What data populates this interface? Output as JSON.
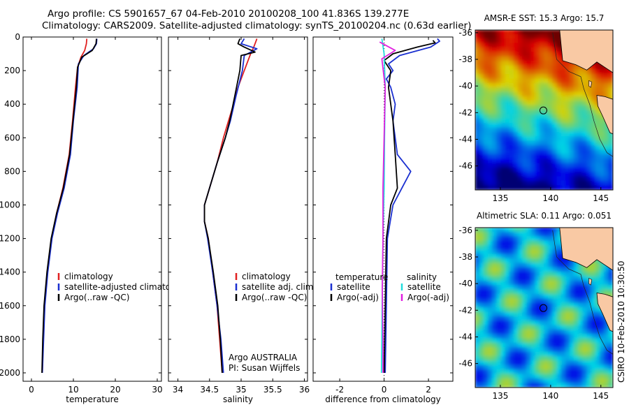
{
  "header": {
    "title_line1": "Argo profile: CS 5901657_67 04-Feb-2010 20100208_100 41.836S 139.277E",
    "title_line2": "Climatology: CARS2009. Satellite-adjusted climatology: synTS_20100204.nc (0.63d earlier)"
  },
  "side_stamp": "CSIRO 10-Feb-2010 10:30:50",
  "colors": {
    "climatology": "#e02020",
    "satellite": "#1a2fd0",
    "argo": "#000000",
    "temp_diff_sat": "#1a2fd0",
    "sal_diff_sat": "#22dddd",
    "sal_diff_argo": "#e020e0",
    "land": "#f9c9a4"
  },
  "chart_data": [
    {
      "id": "temperature",
      "type": "line",
      "xlabel": "temperature",
      "xlim": [
        -2,
        31
      ],
      "xticks": [
        0,
        10,
        20,
        30
      ],
      "ylim": [
        2050,
        0
      ],
      "yticks": [
        0,
        200,
        400,
        600,
        800,
        1000,
        1200,
        1400,
        1600,
        1800,
        2000
      ],
      "legend": [
        "climatology",
        "satellite-adjusted climatology",
        "Argo(..raw -QC)"
      ],
      "series": [
        {
          "name": "climatology",
          "color_key": "climatology",
          "points": [
            [
              13.2,
              10
            ],
            [
              13.1,
              40
            ],
            [
              12.7,
              80
            ],
            [
              11.8,
              120
            ],
            [
              11.0,
              180
            ],
            [
              10.5,
              300
            ],
            [
              9.8,
              500
            ],
            [
              9.0,
              700
            ],
            [
              7.5,
              900
            ],
            [
              6.0,
              1050
            ],
            [
              4.8,
              1200
            ],
            [
              3.8,
              1400
            ],
            [
              3.1,
              1600
            ],
            [
              2.8,
              1800
            ],
            [
              2.6,
              2000
            ]
          ]
        },
        {
          "name": "satellite-adjusted climatology",
          "color_key": "satellite",
          "points": [
            [
              15.6,
              10
            ],
            [
              15.5,
              40
            ],
            [
              14.8,
              70
            ],
            [
              12.5,
              110
            ],
            [
              11.2,
              160
            ],
            [
              10.9,
              300
            ],
            [
              10.0,
              500
            ],
            [
              9.3,
              700
            ],
            [
              7.8,
              900
            ],
            [
              6.2,
              1050
            ],
            [
              4.9,
              1200
            ],
            [
              3.9,
              1400
            ],
            [
              3.2,
              1600
            ],
            [
              2.9,
              1800
            ],
            [
              2.6,
              2000
            ]
          ]
        },
        {
          "name": "Argo(..raw -QC)",
          "color_key": "argo",
          "points": [
            [
              15.5,
              10
            ],
            [
              15.4,
              40
            ],
            [
              14.5,
              80
            ],
            [
              12.0,
              120
            ],
            [
              11.0,
              180
            ],
            [
              10.7,
              300
            ],
            [
              9.9,
              500
            ],
            [
              9.1,
              700
            ],
            [
              7.6,
              900
            ],
            [
              6.0,
              1050
            ],
            [
              4.7,
              1200
            ],
            [
              3.7,
              1400
            ],
            [
              3.0,
              1600
            ],
            [
              2.7,
              1800
            ],
            [
              2.5,
              2000
            ]
          ]
        }
      ]
    },
    {
      "id": "salinity",
      "type": "line",
      "xlabel": "salinity",
      "xlim": [
        33.85,
        36.05
      ],
      "xticks": [
        34,
        34.5,
        35,
        35.5,
        36
      ],
      "ylim": [
        2050,
        0
      ],
      "legend": [
        "climatology",
        "satellite adj. clim.",
        "Argo(..raw -QC)"
      ],
      "annotation": [
        "Argo AUSTRALIA",
        "PI: Susan Wijffels"
      ],
      "series": [
        {
          "name": "climatology",
          "color_key": "climatology",
          "points": [
            [
              35.25,
              10
            ],
            [
              35.2,
              60
            ],
            [
              35.15,
              100
            ],
            [
              35.05,
              200
            ],
            [
              34.95,
              300
            ],
            [
              34.88,
              400
            ],
            [
              34.8,
              500
            ],
            [
              34.72,
              600
            ],
            [
              34.62,
              750
            ],
            [
              34.5,
              900
            ],
            [
              34.42,
              1000
            ],
            [
              34.42,
              1100
            ],
            [
              34.48,
              1200
            ],
            [
              34.55,
              1400
            ],
            [
              34.62,
              1600
            ],
            [
              34.66,
              1800
            ],
            [
              34.7,
              2000
            ]
          ]
        },
        {
          "name": "satellite adj. clim.",
          "color_key": "satellite",
          "points": [
            [
              35.05,
              10
            ],
            [
              35.0,
              40
            ],
            [
              35.25,
              70
            ],
            [
              35.05,
              110
            ],
            [
              35.02,
              200
            ],
            [
              34.92,
              350
            ],
            [
              34.83,
              500
            ],
            [
              34.75,
              600
            ],
            [
              34.62,
              750
            ],
            [
              34.5,
              900
            ],
            [
              34.42,
              1000
            ],
            [
              34.42,
              1100
            ],
            [
              34.47,
              1200
            ],
            [
              34.55,
              1400
            ],
            [
              34.62,
              1600
            ],
            [
              34.68,
              1800
            ],
            [
              34.72,
              2000
            ]
          ]
        },
        {
          "name": "Argo(..raw -QC)",
          "color_key": "argo",
          "points": [
            [
              34.98,
              10
            ],
            [
              34.95,
              40
            ],
            [
              35.05,
              60
            ],
            [
              35.22,
              90
            ],
            [
              35.0,
              110
            ],
            [
              34.98,
              200
            ],
            [
              34.9,
              350
            ],
            [
              34.82,
              500
            ],
            [
              34.75,
              600
            ],
            [
              34.62,
              750
            ],
            [
              34.5,
              900
            ],
            [
              34.42,
              1000
            ],
            [
              34.42,
              1100
            ],
            [
              34.48,
              1200
            ],
            [
              34.56,
              1400
            ],
            [
              34.63,
              1600
            ],
            [
              34.67,
              1800
            ],
            [
              34.7,
              2000
            ]
          ]
        }
      ]
    },
    {
      "id": "difference",
      "type": "line",
      "xlabel": "difference from climatology",
      "xlim": [
        -3.2,
        3.1
      ],
      "xticks": [
        -2,
        0,
        2
      ],
      "ylim": [
        2050,
        0
      ],
      "legend_temperature": {
        "title": "temperature",
        "items": [
          "satellite",
          "Argo(-adj)"
        ]
      },
      "legend_salinity": {
        "title": "salinity",
        "items": [
          "satellite",
          "Argo(-adj)"
        ]
      },
      "series": [
        {
          "name": "temperature satellite",
          "color_key": "temp_diff_sat",
          "points": [
            [
              2.4,
              10
            ],
            [
              2.5,
              25
            ],
            [
              2.1,
              60
            ],
            [
              0.7,
              110
            ],
            [
              0.2,
              160
            ],
            [
              0.4,
              200
            ],
            [
              0.1,
              250
            ],
            [
              0.3,
              300
            ],
            [
              0.5,
              400
            ],
            [
              0.4,
              500
            ],
            [
              0.6,
              700
            ],
            [
              1.2,
              800
            ],
            [
              0.8,
              900
            ],
            [
              0.4,
              1000
            ],
            [
              0.15,
              1200
            ],
            [
              0.1,
              1600
            ],
            [
              0.05,
              2000
            ]
          ]
        },
        {
          "name": "temperature Argo(-adj)",
          "color_key": "argo",
          "points": [
            [
              2.2,
              20
            ],
            [
              2.3,
              35
            ],
            [
              1.5,
              60
            ],
            [
              0.4,
              100
            ],
            [
              0.0,
              140
            ],
            [
              0.3,
              200
            ],
            [
              0.2,
              300
            ],
            [
              0.3,
              400
            ],
            [
              0.4,
              500
            ],
            [
              0.5,
              700
            ],
            [
              0.6,
              900
            ],
            [
              0.3,
              1000
            ],
            [
              0.1,
              1200
            ],
            [
              0.05,
              1600
            ],
            [
              0.0,
              2000
            ]
          ]
        },
        {
          "name": "salinity satellite",
          "color_key": "sal_diff_sat",
          "points": [
            [
              -0.1,
              10
            ],
            [
              0.0,
              100
            ],
            [
              0.05,
              300
            ],
            [
              0.02,
              600
            ],
            [
              0.0,
              900
            ],
            [
              -0.05,
              1200
            ],
            [
              -0.08,
              1500
            ],
            [
              -0.1,
              1800
            ],
            [
              -0.12,
              2000
            ]
          ]
        },
        {
          "name": "salinity Argo(-adj)",
          "color_key": "sal_diff_argo",
          "points": [
            [
              -0.2,
              30
            ],
            [
              0.5,
              80
            ],
            [
              -0.1,
              130
            ],
            [
              0.05,
              300
            ],
            [
              0.0,
              600
            ],
            [
              -0.05,
              900
            ],
            [
              -0.05,
              1200
            ],
            [
              -0.08,
              1500
            ],
            [
              -0.05,
              1800
            ],
            [
              -0.05,
              2000
            ]
          ]
        }
      ]
    },
    {
      "id": "sst_map",
      "type": "heatmap",
      "title": "AMSR-E SST: 15.3 Argo: 15.7",
      "xlim": [
        132.5,
        146.2
      ],
      "ylim": [
        -47.8,
        -35.8
      ],
      "xticks": [
        135,
        140,
        145
      ],
      "yticks": [
        -36,
        -38,
        -40,
        -42,
        -44,
        -46
      ],
      "profile_location": [
        139.277,
        -41.836
      ]
    },
    {
      "id": "sla_map",
      "type": "heatmap",
      "title": "Altimetric SLA: 0.11 Argo: 0.051",
      "xlim": [
        132.5,
        146.2
      ],
      "ylim": [
        -47.8,
        -35.8
      ],
      "xticks": [
        135,
        140,
        145
      ],
      "yticks": [
        -36,
        -38,
        -40,
        -42,
        -44,
        -46
      ],
      "profile_location": [
        139.277,
        -41.836
      ]
    }
  ]
}
